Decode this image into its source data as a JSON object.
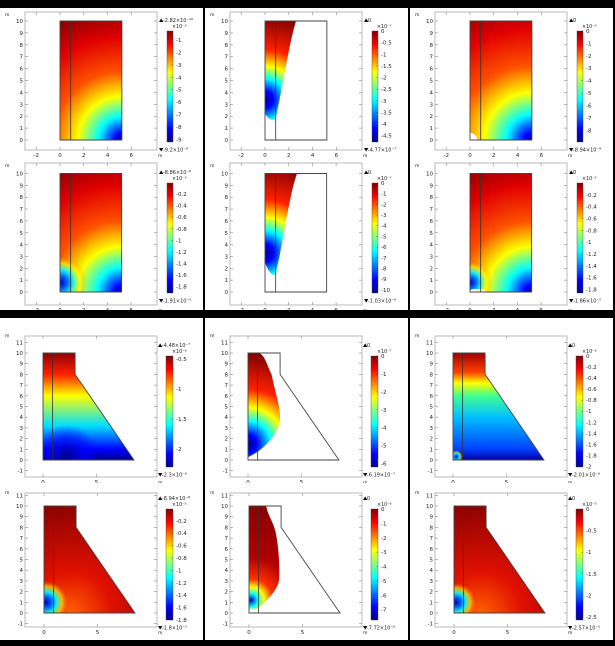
{
  "title": "COMSOL surface plots (12 panels)",
  "chart_data": [
    {
      "type": "heatmap",
      "id": "p1",
      "geometry": "rectangle",
      "xlim": [
        -3,
        8
      ],
      "ylim": [
        -1,
        10.8
      ],
      "xticks": [
        -2,
        0,
        2,
        4,
        6
      ],
      "yticks": [
        0,
        1,
        2,
        3,
        4,
        5,
        6,
        7,
        8,
        9,
        10
      ],
      "axis_unit": "m",
      "max_label": "-2.82×10⁻¹⁰",
      "min_label": "-9.2×10⁻⁹",
      "multiplier": "×10⁻⁹",
      "range": [
        -0.282,
        -9.2
      ],
      "cbar_ticks": [
        -1,
        -2,
        -3,
        -4,
        -5,
        -6,
        -7,
        -8,
        -9
      ]
    },
    {
      "type": "heatmap",
      "id": "p2",
      "geometry": "rectangle",
      "xlim": [
        -3,
        8
      ],
      "ylim": [
        -1,
        10.8
      ],
      "xticks": [
        -2,
        0,
        2,
        4,
        6
      ],
      "yticks": [
        0,
        1,
        2,
        3,
        4,
        5,
        6,
        7,
        8,
        9,
        10
      ],
      "axis_unit": "m",
      "max_label": "0",
      "min_label": "-4.77×10⁻⁷",
      "multiplier": "×10⁻⁷",
      "range": [
        0,
        -4.77
      ],
      "cbar_ticks": [
        0,
        -0.5,
        -1,
        -1.5,
        -2,
        -2.5,
        -3,
        -3.5,
        -4,
        -4.5
      ]
    },
    {
      "type": "heatmap",
      "id": "p3",
      "geometry": "rectangle",
      "xlim": [
        -3,
        8
      ],
      "ylim": [
        -1,
        10.8
      ],
      "xticks": [
        -2,
        0,
        2,
        4,
        6
      ],
      "yticks": [
        0,
        1,
        2,
        3,
        4,
        5,
        6,
        7,
        8,
        9,
        10
      ],
      "axis_unit": "m",
      "max_label": "0",
      "min_label": "-8.94×10⁻⁹",
      "multiplier": "×10⁻⁹",
      "range": [
        0,
        -8.94
      ],
      "cbar_ticks": [
        0,
        -1,
        -2,
        -3,
        -4,
        -5,
        -6,
        -7,
        -8
      ]
    },
    {
      "type": "heatmap",
      "id": "p4",
      "geometry": "rectangle",
      "xlim": [
        -3,
        8
      ],
      "ylim": [
        -1,
        10.8
      ],
      "xticks": [
        -2,
        0,
        2,
        4,
        6
      ],
      "yticks": [
        0,
        1,
        2,
        3,
        4,
        5,
        6,
        7,
        8,
        9,
        10
      ],
      "axis_unit": "m",
      "max_label": "-8.86×10⁻⁸",
      "min_label": "-1.91×10⁻⁵",
      "multiplier": "×10⁻⁵",
      "range": [
        -0.00886,
        -1.91
      ],
      "cbar_ticks": [
        -0.2,
        -0.4,
        -0.6,
        -0.8,
        -1,
        -1.2,
        -1.4,
        -1.6,
        -1.8
      ]
    },
    {
      "type": "heatmap",
      "id": "p5",
      "geometry": "rectangle",
      "xlim": [
        -3,
        8
      ],
      "ylim": [
        -1,
        10.8
      ],
      "xticks": [
        -2,
        0,
        2,
        4,
        6
      ],
      "yticks": [
        0,
        1,
        2,
        3,
        4,
        5,
        6,
        7,
        8,
        9,
        10
      ],
      "axis_unit": "m",
      "max_label": "0",
      "min_label": "-1.03×10⁻⁶",
      "multiplier": "×10⁻⁷",
      "range": [
        0,
        -10.3
      ],
      "cbar_ticks": [
        0,
        -1,
        -2,
        -3,
        -4,
        -5,
        -6,
        -7,
        -8,
        -9,
        -10
      ]
    },
    {
      "type": "heatmap",
      "id": "p6",
      "geometry": "rectangle",
      "xlim": [
        -3,
        8
      ],
      "ylim": [
        -1,
        10.8
      ],
      "xticks": [
        -2,
        0,
        2,
        4,
        6
      ],
      "yticks": [
        0,
        1,
        2,
        3,
        4,
        5,
        6,
        7,
        8,
        9,
        10
      ],
      "axis_unit": "m",
      "max_label": "0",
      "min_label": "-1.86×10⁻⁵",
      "multiplier": "×10⁻⁵",
      "range": [
        0,
        -1.86
      ],
      "cbar_ticks": [
        -0.2,
        -0.4,
        -0.6,
        -0.8,
        -1,
        -1.2,
        -1.4,
        -1.6,
        -1.8
      ]
    },
    {
      "type": "heatmap",
      "id": "p7",
      "geometry": "dam",
      "xlim": [
        -1,
        11.2
      ],
      "ylim": [
        -1.5,
        11.7
      ],
      "xticks": [
        0,
        5
      ],
      "yticks": [
        -1,
        0,
        1,
        2,
        3,
        4,
        5,
        6,
        7,
        8,
        9,
        10,
        11
      ],
      "axis_unit": "m",
      "max_label": "-4.48×10⁻⁷",
      "min_label": "-2.3×10⁻⁶",
      "multiplier": "×10⁻⁶",
      "range": [
        -0.448,
        -2.3
      ],
      "cbar_ticks": [
        -0.5,
        -1,
        -1.5,
        -2
      ]
    },
    {
      "type": "heatmap",
      "id": "p8",
      "geometry": "dam",
      "xlim": [
        -1,
        11.2
      ],
      "ylim": [
        -1.5,
        11.7
      ],
      "xticks": [
        0,
        5
      ],
      "yticks": [
        -1,
        0,
        1,
        2,
        3,
        4,
        5,
        6,
        7,
        8,
        9,
        10,
        11
      ],
      "axis_unit": "m",
      "max_label": "0",
      "min_label": "-6.19×10⁻⁷",
      "multiplier": "×10⁻⁷",
      "range": [
        0,
        -6.19
      ],
      "cbar_ticks": [
        0,
        -1,
        -2,
        -3,
        -4,
        -5,
        -6
      ]
    },
    {
      "type": "heatmap",
      "id": "p9",
      "geometry": "dam",
      "xlim": [
        -1,
        11.2
      ],
      "ylim": [
        -1.5,
        11.7
      ],
      "xticks": [
        0,
        5
      ],
      "yticks": [
        -1,
        0,
        1,
        2,
        3,
        4,
        5,
        6,
        7,
        8,
        9,
        10,
        11
      ],
      "axis_unit": "m",
      "max_label": "0",
      "min_label": "-2.01×10⁻⁶",
      "multiplier": "×10⁻⁶",
      "range": [
        0,
        -2.01
      ],
      "cbar_ticks": [
        0,
        -0.2,
        -0.4,
        -0.6,
        -0.8,
        -1,
        -1.2,
        -1.4,
        -1.6,
        -1.8,
        -2
      ]
    },
    {
      "type": "heatmap",
      "id": "p10",
      "geometry": "dam",
      "xlim": [
        -1,
        11.2
      ],
      "ylim": [
        -1.5,
        11.7
      ],
      "xticks": [
        0,
        5
      ],
      "yticks": [
        -1,
        0,
        1,
        2,
        3,
        4,
        5,
        6,
        7,
        8,
        9,
        10,
        11
      ],
      "axis_unit": "m",
      "max_label": "-8.94×10⁻⁸",
      "min_label": "-1.8×10⁻⁵",
      "multiplier": "×10⁻⁵",
      "range": [
        -0.00894,
        -1.8
      ],
      "cbar_ticks": [
        -0.2,
        -0.4,
        -0.6,
        -0.8,
        -1,
        -1.2,
        -1.4,
        -1.6,
        -1.8
      ]
    },
    {
      "type": "heatmap",
      "id": "p11",
      "geometry": "dam",
      "xlim": [
        -1,
        11.2
      ],
      "ylim": [
        -1.5,
        11.7
      ],
      "xticks": [
        0,
        5
      ],
      "yticks": [
        -1,
        0,
        1,
        2,
        3,
        4,
        5,
        6,
        7,
        8,
        9,
        10,
        11
      ],
      "axis_unit": "m",
      "max_label": "0",
      "min_label": "-7.72×10⁻⁶",
      "multiplier": "×10⁻⁶",
      "range": [
        0,
        -7.72
      ],
      "cbar_ticks": [
        0,
        -1,
        -2,
        -3,
        -4,
        -5,
        -6,
        -7
      ]
    },
    {
      "type": "heatmap",
      "id": "p12",
      "geometry": "dam",
      "xlim": [
        -1,
        11.2
      ],
      "ylim": [
        -1.5,
        11.7
      ],
      "xticks": [
        0,
        5
      ],
      "yticks": [
        -1,
        0,
        1,
        2,
        3,
        4,
        5,
        6,
        7,
        8,
        9,
        10,
        11
      ],
      "axis_unit": "m",
      "max_label": "0",
      "min_label": "-2.57×10⁻⁵",
      "multiplier": "×10⁻⁵",
      "range": [
        0,
        -2.57
      ],
      "cbar_ticks": [
        0,
        -0.5,
        -1,
        -1.5,
        -2,
        -2.5
      ]
    }
  ]
}
